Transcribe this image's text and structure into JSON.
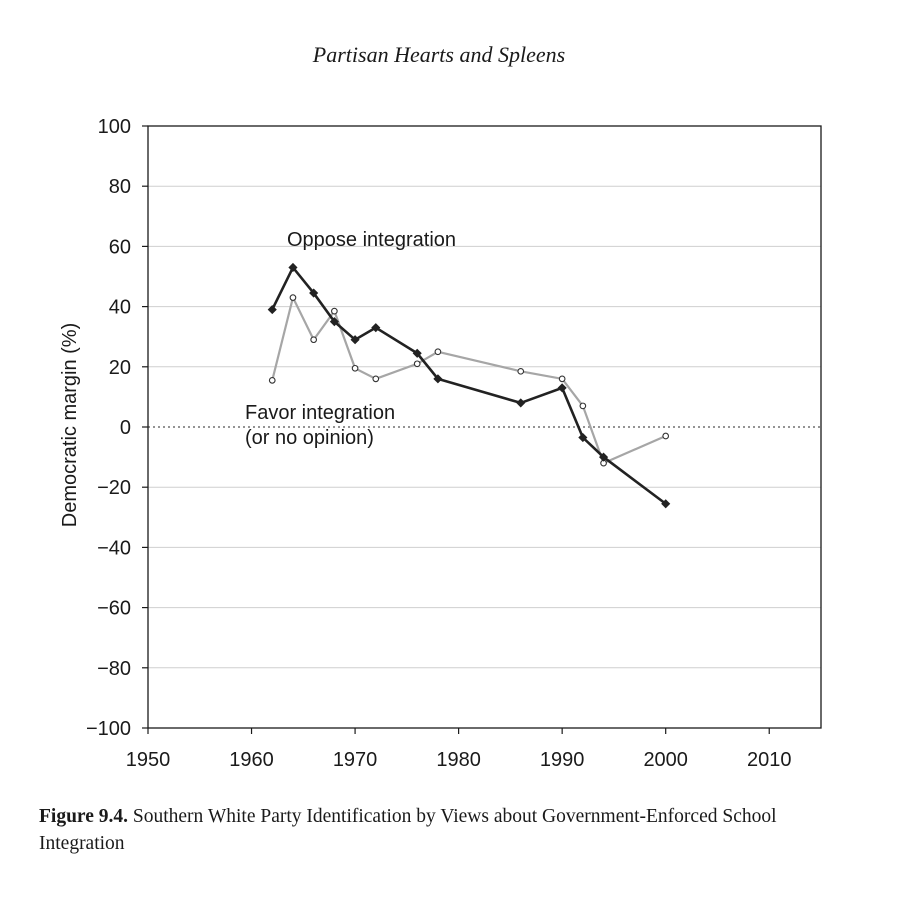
{
  "running_head": "Partisan Hearts and Spleens",
  "caption": {
    "label": "Figure 9.4.",
    "text": "Southern White Party Identification by Views about Government-Enforced School Integration"
  },
  "colors": {
    "oppose": "#222222",
    "favor": "#a6a6a6",
    "grid": "#cfcfcf",
    "zero_line": "#555555"
  },
  "chart_data": {
    "type": "line",
    "title": "",
    "xlabel": "",
    "ylabel": "Democratic margin (%)",
    "xlim": [
      1950,
      2015
    ],
    "ylim": [
      -100,
      100
    ],
    "x_ticks": [
      1950,
      1960,
      1970,
      1980,
      1990,
      2000,
      2010
    ],
    "y_ticks": [
      100,
      80,
      60,
      40,
      20,
      0,
      -20,
      -40,
      -60,
      -80,
      -100
    ],
    "y_tick_labels": [
      "100",
      "80",
      "60",
      "40",
      "20",
      "0",
      "−20",
      "−40",
      "−60",
      "−80",
      "−100"
    ],
    "grid": true,
    "zero_line": "dotted",
    "legend": "none",
    "series": [
      {
        "name": "Oppose integration",
        "marker": "filled-diamond",
        "x": [
          1962,
          1964,
          1966,
          1968,
          1970,
          1972,
          1976,
          1978,
          1986,
          1990,
          1992,
          1994,
          2000
        ],
        "y": [
          39,
          53,
          44.5,
          35,
          29,
          33,
          24.5,
          16,
          8,
          13,
          -3.5,
          -10,
          -25.5
        ]
      },
      {
        "name": "Favor integration\n(or no opinion)",
        "marker": "open-circle",
        "x": [
          1962,
          1964,
          1966,
          1968,
          1970,
          1972,
          1976,
          1978,
          1986,
          1990,
          1992,
          1994,
          2000
        ],
        "y": [
          15.5,
          43,
          29,
          38.5,
          19.5,
          16,
          21,
          25,
          18.5,
          16,
          7,
          -12,
          -3
        ]
      }
    ],
    "annotations": {
      "oppose": "Oppose integration",
      "favor_line1": "Favor integration",
      "favor_line2": "(or no opinion)"
    }
  }
}
